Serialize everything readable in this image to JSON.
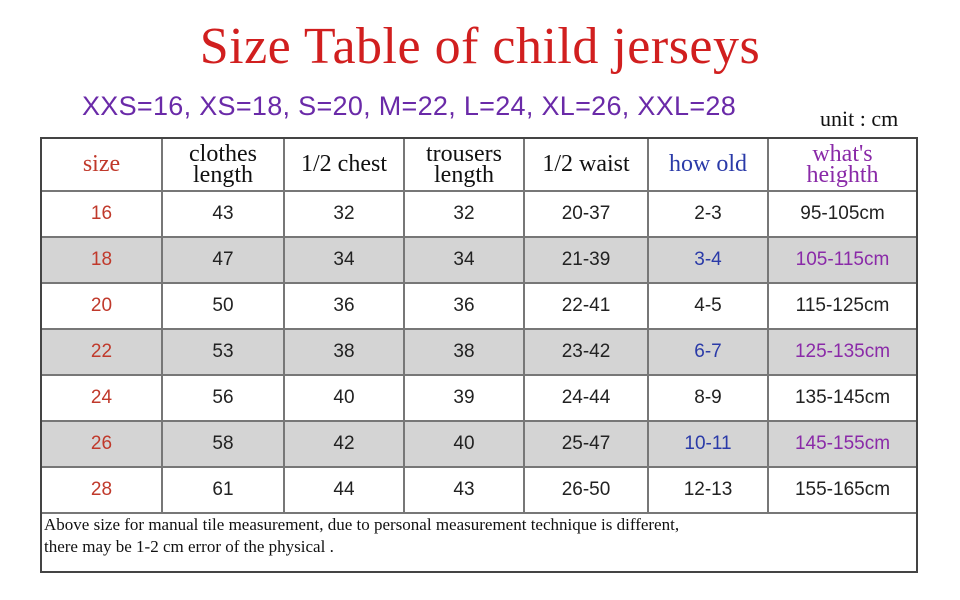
{
  "title": "Size Table of child jerseys",
  "size_mapping": "XXS=16, XS=18, S=20, M=22, L=24, XL=26, XXL=28",
  "unit": "unit : cm",
  "columns": {
    "size": "size",
    "clothes_length": [
      "clothes",
      "length"
    ],
    "half_chest": "1/2 chest",
    "trousers_length": [
      "trousers",
      "length"
    ],
    "half_waist": "1/2 waist",
    "how_old": "how old",
    "height": [
      "what's",
      "heighth"
    ]
  },
  "rows": [
    [
      "16",
      "43",
      "32",
      "32",
      "20-37",
      "2-3",
      "95-105cm"
    ],
    [
      "18",
      "47",
      "34",
      "34",
      "21-39",
      "3-4",
      "105-115cm"
    ],
    [
      "20",
      "50",
      "36",
      "36",
      "22-41",
      "4-5",
      "115-125cm"
    ],
    [
      "22",
      "53",
      "38",
      "38",
      "23-42",
      "6-7",
      "125-135cm"
    ],
    [
      "24",
      "56",
      "40",
      "39",
      "24-44",
      "8-9",
      "135-145cm"
    ],
    [
      "26",
      "58",
      "42",
      "40",
      "25-47",
      "10-11",
      "145-155cm"
    ],
    [
      "28",
      "61",
      "44",
      "43",
      "26-50",
      "12-13",
      "155-165cm"
    ]
  ],
  "note": [
    "Above size for manual tile measurement, due to personal measurement technique is different,",
    "there may be 1-2 cm error of the physical ."
  ],
  "colors": {
    "title": "#d11f1f",
    "size_mapping": "#6a2aa8",
    "size_column": "#c0392b",
    "age_column": "#2a3aa8",
    "height_column": "#8a2aa8",
    "shaded_row": "#d4d4d4"
  }
}
